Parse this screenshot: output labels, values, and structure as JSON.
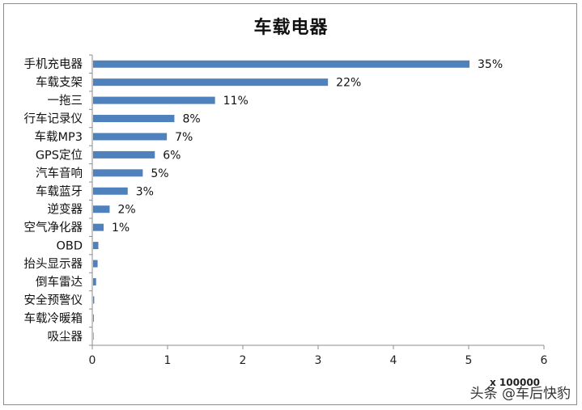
{
  "watermark": "头条 @车后快豹",
  "chart_data": {
    "type": "bar",
    "orientation": "horizontal",
    "title": "车载电器",
    "xlabel": "x 100000",
    "ylabel": "",
    "xlim": [
      0,
      6
    ],
    "xticks": [
      0,
      1,
      2,
      3,
      4,
      5,
      6
    ],
    "grid": false,
    "legend": "none",
    "bar_color": "#4f81bd",
    "categories": [
      "手机充电器",
      "车载支架",
      "一拖三",
      "行车记录仪",
      "车载MP3",
      "GPS定位",
      "汽车音响",
      "车载蓝牙",
      "逆变器",
      "空气净化器",
      "OBD",
      "抬头显示器",
      "倒车雷达",
      "安全预警仪",
      "车载冷暖箱",
      "吸尘器"
    ],
    "values": [
      5.0,
      3.12,
      1.62,
      1.08,
      0.98,
      0.82,
      0.66,
      0.46,
      0.22,
      0.14,
      0.07,
      0.06,
      0.04,
      0.015,
      0.01,
      0.005
    ],
    "data_labels": [
      "35%",
      "22%",
      "11%",
      "8%",
      "7%",
      "6%",
      "5%",
      "3%",
      "2%",
      "1%",
      "",
      "",
      "",
      "",
      "",
      ""
    ]
  }
}
